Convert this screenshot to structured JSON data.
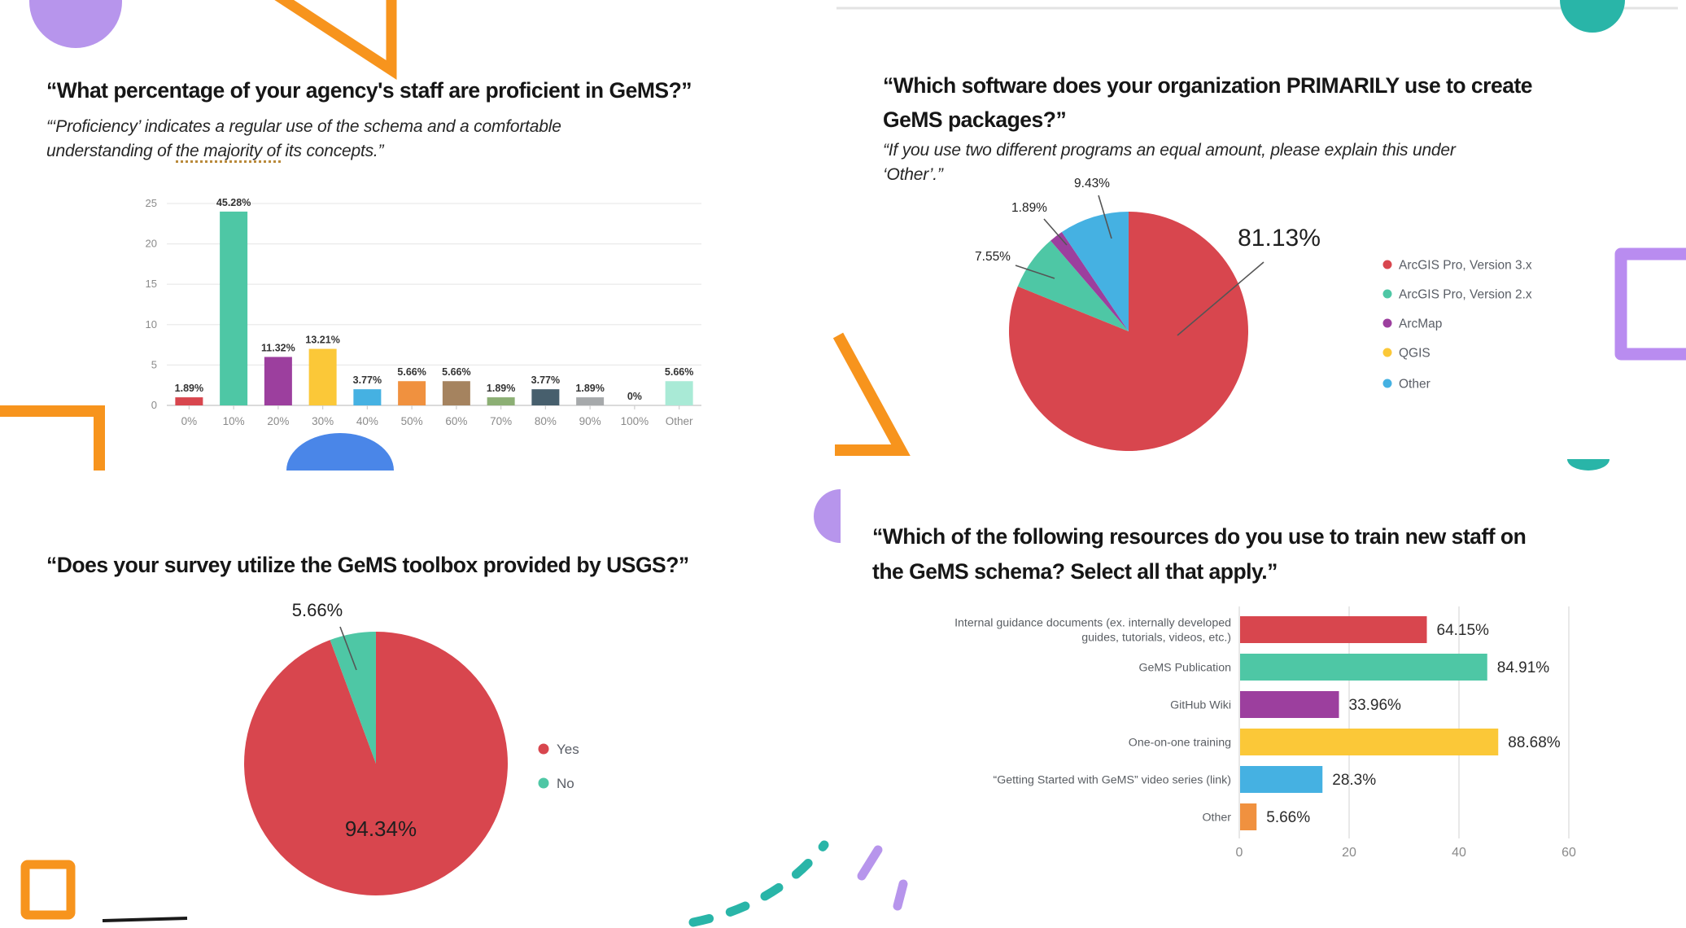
{
  "decor_colors": {
    "orange": "#f7941d",
    "purple": "#b795ec",
    "purple_light": "#b98cf0",
    "teal": "#29b5a8",
    "blue": "#4a86e8",
    "gray_line": "#e3e3e3",
    "black_line": "#1a1a1a"
  },
  "chart_data": [
    {
      "id": "staff-proficiency",
      "type": "bar",
      "title_lines": [
        "“What percentage of your agency's staff are proficient in GeMS?”"
      ],
      "subtitle_lines": [
        "“‘Proficiency’ indicates a regular use of the schema and a comfortable"
      ],
      "subtitle_parts": {
        "pre": "understanding of ",
        "underlined": "the majority of",
        "post": " its concepts.”"
      },
      "categories": [
        "0%",
        "10%",
        "20%",
        "30%",
        "40%",
        "50%",
        "60%",
        "70%",
        "80%",
        "90%",
        "100%",
        "Other"
      ],
      "values": [
        1,
        24,
        6,
        7,
        2,
        3,
        3,
        1,
        2,
        1,
        0,
        3
      ],
      "value_labels": [
        "1.89%",
        "45.28%",
        "11.32%",
        "13.21%",
        "3.77%",
        "5.66%",
        "5.66%",
        "1.89%",
        "3.77%",
        "1.89%",
        "0%",
        "5.66%"
      ],
      "colors": [
        "#d8464e",
        "#4ec7a5",
        "#9c3f9e",
        "#fbc838",
        "#45b1e2",
        "#f0913f",
        "#a5835f",
        "#8caf74",
        "#475f6d",
        "#a6a9ab",
        "#a6a9ab",
        "#a9ead6"
      ],
      "xlabel": "",
      "ylabel": "",
      "ylim": [
        0,
        25
      ],
      "yticks": [
        0,
        5,
        10,
        15,
        20,
        25
      ],
      "grid": true,
      "legend_position": "none"
    },
    {
      "id": "primary-software",
      "type": "pie",
      "title_lines": [
        "“Which software does your organization PRIMARILY use to create",
        "GeMS packages?”"
      ],
      "subtitle_lines": [
        "“If you use two different programs an equal amount, please explain this under",
        "‘Other’.”"
      ],
      "slices": [
        {
          "label": "ArcGIS Pro, Version 3.x",
          "pct": 81.13,
          "label_text": "81.13%",
          "color": "#d8464e"
        },
        {
          "label": "ArcGIS Pro, Version 2.x",
          "pct": 7.55,
          "label_text": "7.55%",
          "color": "#4ec7a5"
        },
        {
          "label": "ArcMap",
          "pct": 1.89,
          "label_text": "1.89%",
          "color": "#9c3f9e"
        },
        {
          "label": "Other",
          "pct": 9.43,
          "label_text": "9.43%",
          "color": "#45b1e2"
        }
      ],
      "legend": [
        {
          "label": "ArcGIS Pro, Version 3.x",
          "color": "#d8464e"
        },
        {
          "label": "ArcGIS Pro, Version 2.x",
          "color": "#4ec7a5"
        },
        {
          "label": "ArcMap",
          "color": "#9c3f9e"
        },
        {
          "label": "QGIS",
          "color": "#fbc838"
        },
        {
          "label": "Other",
          "color": "#45b1e2"
        }
      ],
      "legend_position": "right"
    },
    {
      "id": "gems-toolbox",
      "type": "pie",
      "title_lines": [
        "“Does your survey utilize the GeMS toolbox provided by USGS?”"
      ],
      "slices": [
        {
          "label": "Yes",
          "pct": 94.34,
          "label_text": "94.34%",
          "color": "#d8464e"
        },
        {
          "label": "No",
          "pct": 5.66,
          "label_text": "5.66%",
          "color": "#4ec7a5"
        }
      ],
      "legend": [
        {
          "label": "Yes",
          "color": "#d8464e"
        },
        {
          "label": "No",
          "color": "#4ec7a5"
        }
      ],
      "legend_position": "right"
    },
    {
      "id": "training-resources",
      "type": "hbar",
      "title_lines": [
        "“Which of the following resources do you use to train new staff on",
        "the GeMS schema? Select all that apply.”"
      ],
      "categories": [
        [
          "Internal guidance documents (ex. internally developed",
          "guides, tutorials, videos, etc.)"
        ],
        [
          "GeMS Publication"
        ],
        [
          "GitHub Wiki"
        ],
        [
          "One-on-one training"
        ],
        [
          "“Getting Started with GeMS” video series (link)"
        ],
        [
          "Other"
        ]
      ],
      "values": [
        34,
        45,
        18,
        47,
        15,
        3
      ],
      "value_labels": [
        "64.15%",
        "84.91%",
        "33.96%",
        "88.68%",
        "28.3%",
        "5.66%"
      ],
      "colors": [
        "#d8464e",
        "#4ec7a5",
        "#9c3f9e",
        "#fbc838",
        "#45b1e2",
        "#f0913f"
      ],
      "xlim": [
        0,
        69
      ],
      "xticks": [
        0,
        20,
        40,
        60
      ],
      "grid": true,
      "legend_position": "none"
    }
  ]
}
